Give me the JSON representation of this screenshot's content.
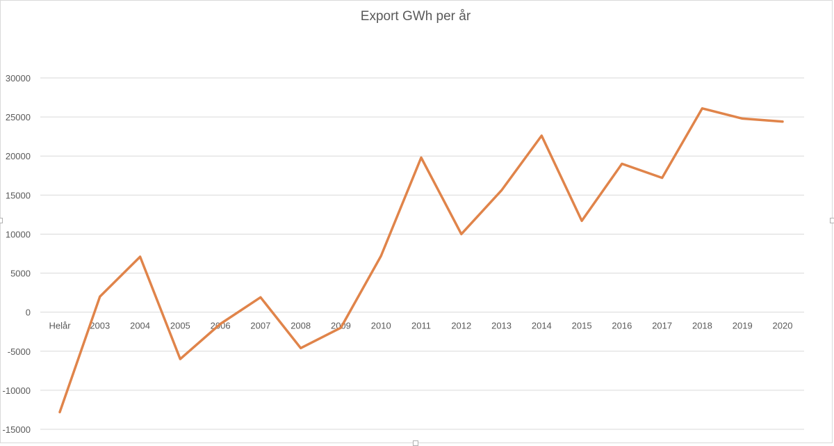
{
  "chart_data": {
    "type": "line",
    "title": "Export GWh per år",
    "xlabel": "",
    "ylabel": "",
    "categories": [
      "Helår",
      "2003",
      "2004",
      "2005",
      "2006",
      "2007",
      "2008",
      "2009",
      "2010",
      "2011",
      "2012",
      "2013",
      "2014",
      "2015",
      "2016",
      "2017",
      "2018",
      "2019",
      "2020"
    ],
    "series": [
      {
        "name": "Export GWh",
        "color": "#E0844A",
        "values": [
          -12800,
          2000,
          7100,
          -6000,
          -1500,
          1900,
          -4600,
          -2000,
          7200,
          19800,
          10000,
          15600,
          22600,
          11700,
          19000,
          17200,
          26100,
          24800,
          24400
        ]
      }
    ],
    "yticks": [
      30000,
      25000,
      20000,
      15000,
      10000,
      5000,
      0,
      -5000,
      -10000,
      -15000
    ],
    "ylim": [
      -15000,
      30000
    ],
    "grid": true,
    "legend": "none"
  }
}
